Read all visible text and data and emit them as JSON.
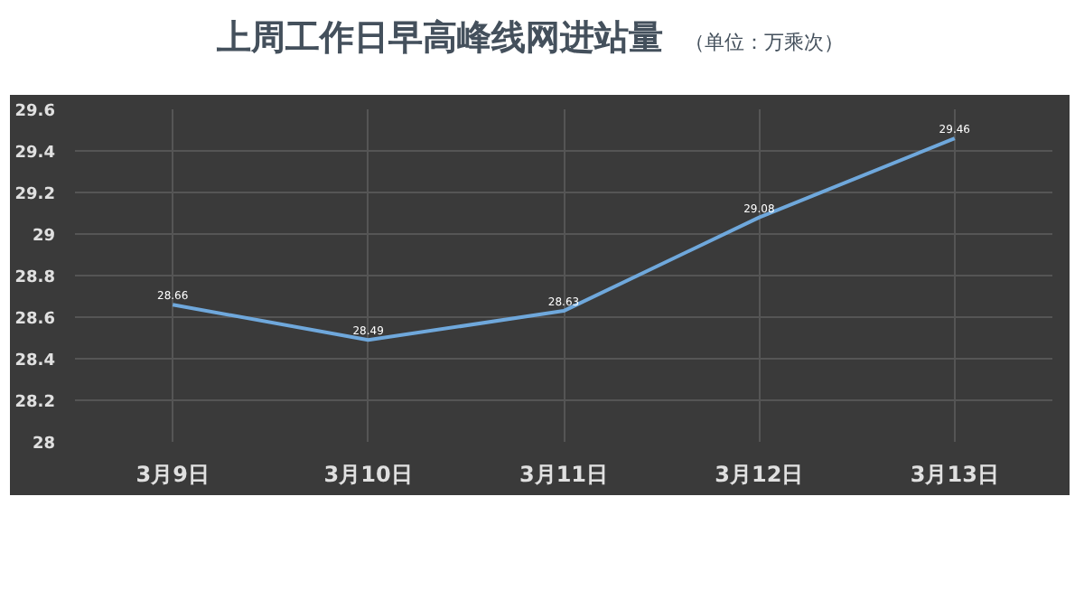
{
  "chart_data": {
    "type": "line",
    "title": "上周工作日早高峰线网进站量",
    "subtitle": "（单位：万乘次）",
    "categories": [
      "3月9日",
      "3月10日",
      "3月11日",
      "3月12日",
      "3月13日"
    ],
    "series": [
      {
        "color": "#6fa8dc",
        "values": [
          28.66,
          28.49,
          28.63,
          29.08,
          29.46
        ]
      }
    ],
    "ylim": [
      28,
      29.6
    ],
    "yticks": [
      28,
      28.2,
      28.4,
      28.6,
      28.8,
      29,
      29.2,
      29.4,
      29.6
    ],
    "grid": true,
    "data_labels": true,
    "marker": "none",
    "line_style": "solid"
  }
}
